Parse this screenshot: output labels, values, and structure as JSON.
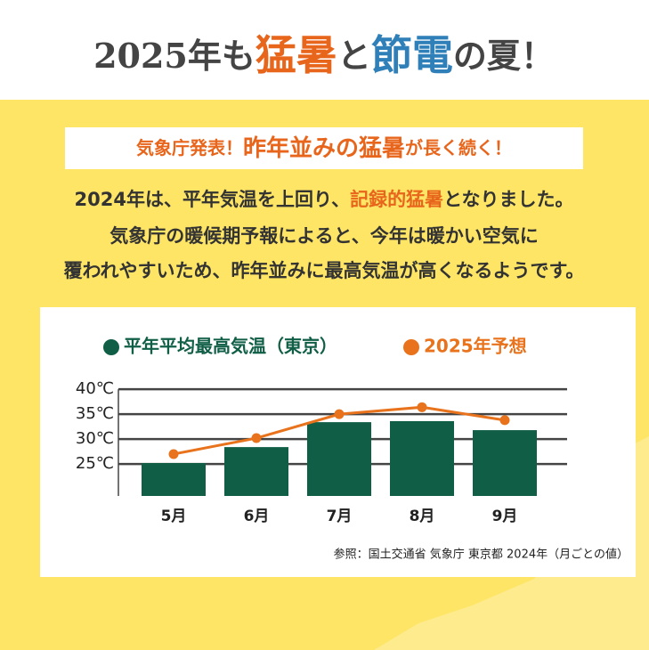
{
  "header": {
    "title": [
      {
        "text": "2025年も",
        "color": "#444444"
      },
      {
        "text": "猛暑",
        "color": "#e8651c"
      },
      {
        "text": "と",
        "color": "#444444"
      },
      {
        "text": "節電",
        "color": "#2f7fb8"
      },
      {
        "text": "の夏！",
        "color": "#444444"
      }
    ]
  },
  "banner": {
    "parts": [
      {
        "text": "気象庁発表！",
        "color": "#e8651c"
      },
      {
        "text": "昨年並みの猛暑",
        "color": "#e8651c"
      },
      {
        "text": "が長く続く！",
        "color": "#e8651c"
      }
    ]
  },
  "body": {
    "lines": [
      [
        {
          "text": "2024年は、平年気温を上回り、",
          "color": "#333333"
        },
        {
          "text": "記録的猛暑",
          "color": "#e8651c"
        },
        {
          "text": "となりました。",
          "color": "#333333"
        }
      ],
      [
        {
          "text": "気象庁の暖候期予報によると、今年は暖かい空気に",
          "color": "#333333"
        }
      ],
      [
        {
          "text": "覆われやすいため、昨年並みに最高気温が高くなるようです。",
          "color": "#333333"
        }
      ]
    ]
  },
  "chart_data": {
    "type": "bar",
    "categories": [
      "5月",
      "6月",
      "7月",
      "8月",
      "9月"
    ],
    "series": [
      {
        "name": "平年平均最高気温（東京）",
        "color": "#0f5e45",
        "type": "bar",
        "values": [
          25.2,
          28.4,
          33.4,
          33.6,
          31.8
        ]
      },
      {
        "name": "2025年予想",
        "color": "#e8731c",
        "type": "line",
        "values": [
          27.0,
          30.2,
          35.0,
          36.4,
          33.8
        ]
      }
    ],
    "ylim": [
      18.6,
      40
    ],
    "yticks": [
      {
        "value": 25,
        "label": "25℃"
      },
      {
        "value": 30,
        "label": "30℃"
      },
      {
        "value": 35,
        "label": "35℃"
      },
      {
        "value": 40,
        "label": "40℃"
      }
    ],
    "grid": true,
    "source": "参照：国土交通省 気象庁 東京都 2024年（月ごとの値）"
  }
}
